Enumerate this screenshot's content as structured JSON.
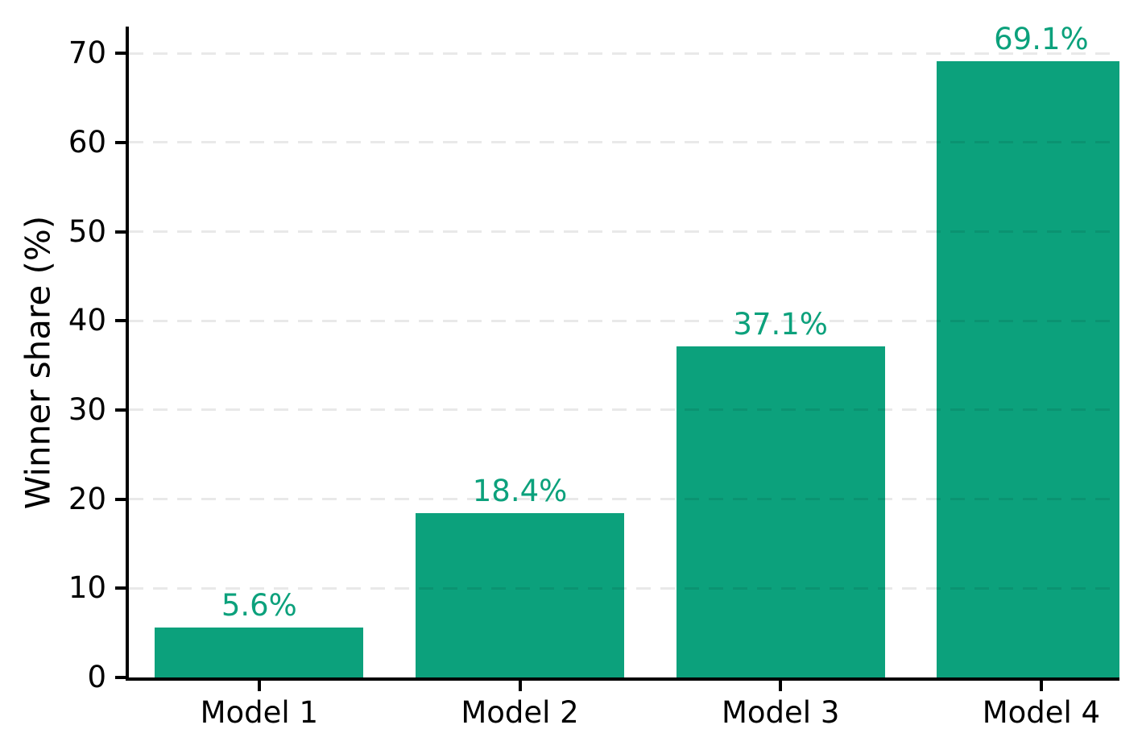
{
  "chart_data": {
    "type": "bar",
    "title": "",
    "xlabel": "",
    "ylabel": "Winner share (%)",
    "categories": [
      "Model 1",
      "Model 2",
      "Model 3",
      "Model 4"
    ],
    "values": [
      5.6,
      18.4,
      37.1,
      69.1
    ],
    "value_labels": [
      "5.6%",
      "18.4%",
      "37.1%",
      "69.1%"
    ],
    "yticks": [
      0,
      10,
      20,
      30,
      40,
      50,
      60,
      70
    ],
    "ylim": [
      0,
      73
    ],
    "xlim": [
      -0.5,
      3.3
    ],
    "bar_width_fraction": 0.8,
    "grid": {
      "axis": "y",
      "style": "dashed",
      "on": true
    },
    "legend_position": "none",
    "colors": {
      "bar": "#0ca17c",
      "value_label": "#0ca17c",
      "axis": "#000000",
      "tick_label": "#000000",
      "gridline": "#e9e9e9",
      "background": "#ffffff"
    }
  }
}
